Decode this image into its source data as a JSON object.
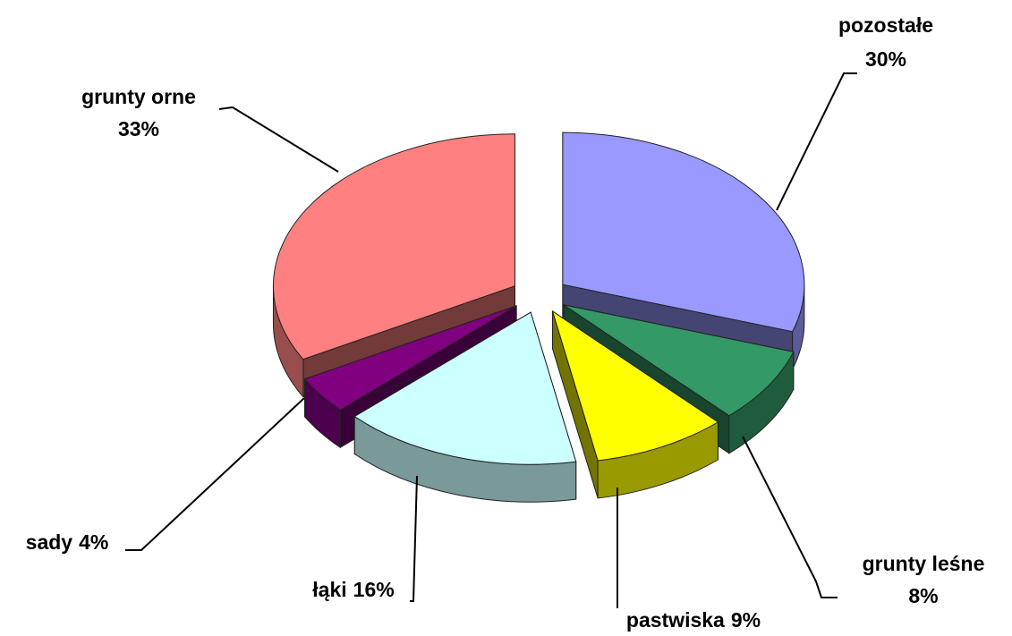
{
  "chart_data": {
    "type": "pie",
    "categories": [
      "pozostałe",
      "grunty leśne",
      "pastwiska",
      "łąki",
      "sady",
      "grunty orne"
    ],
    "values": [
      30,
      8,
      9,
      16,
      4,
      33
    ],
    "value_labels": [
      "30%",
      "8%",
      "9%",
      "16%",
      "4%",
      "33%"
    ],
    "colors": [
      "#9999ff",
      "#339966",
      "#ffff00",
      "#ccffff",
      "#800080",
      "#ff8080"
    ]
  }
}
